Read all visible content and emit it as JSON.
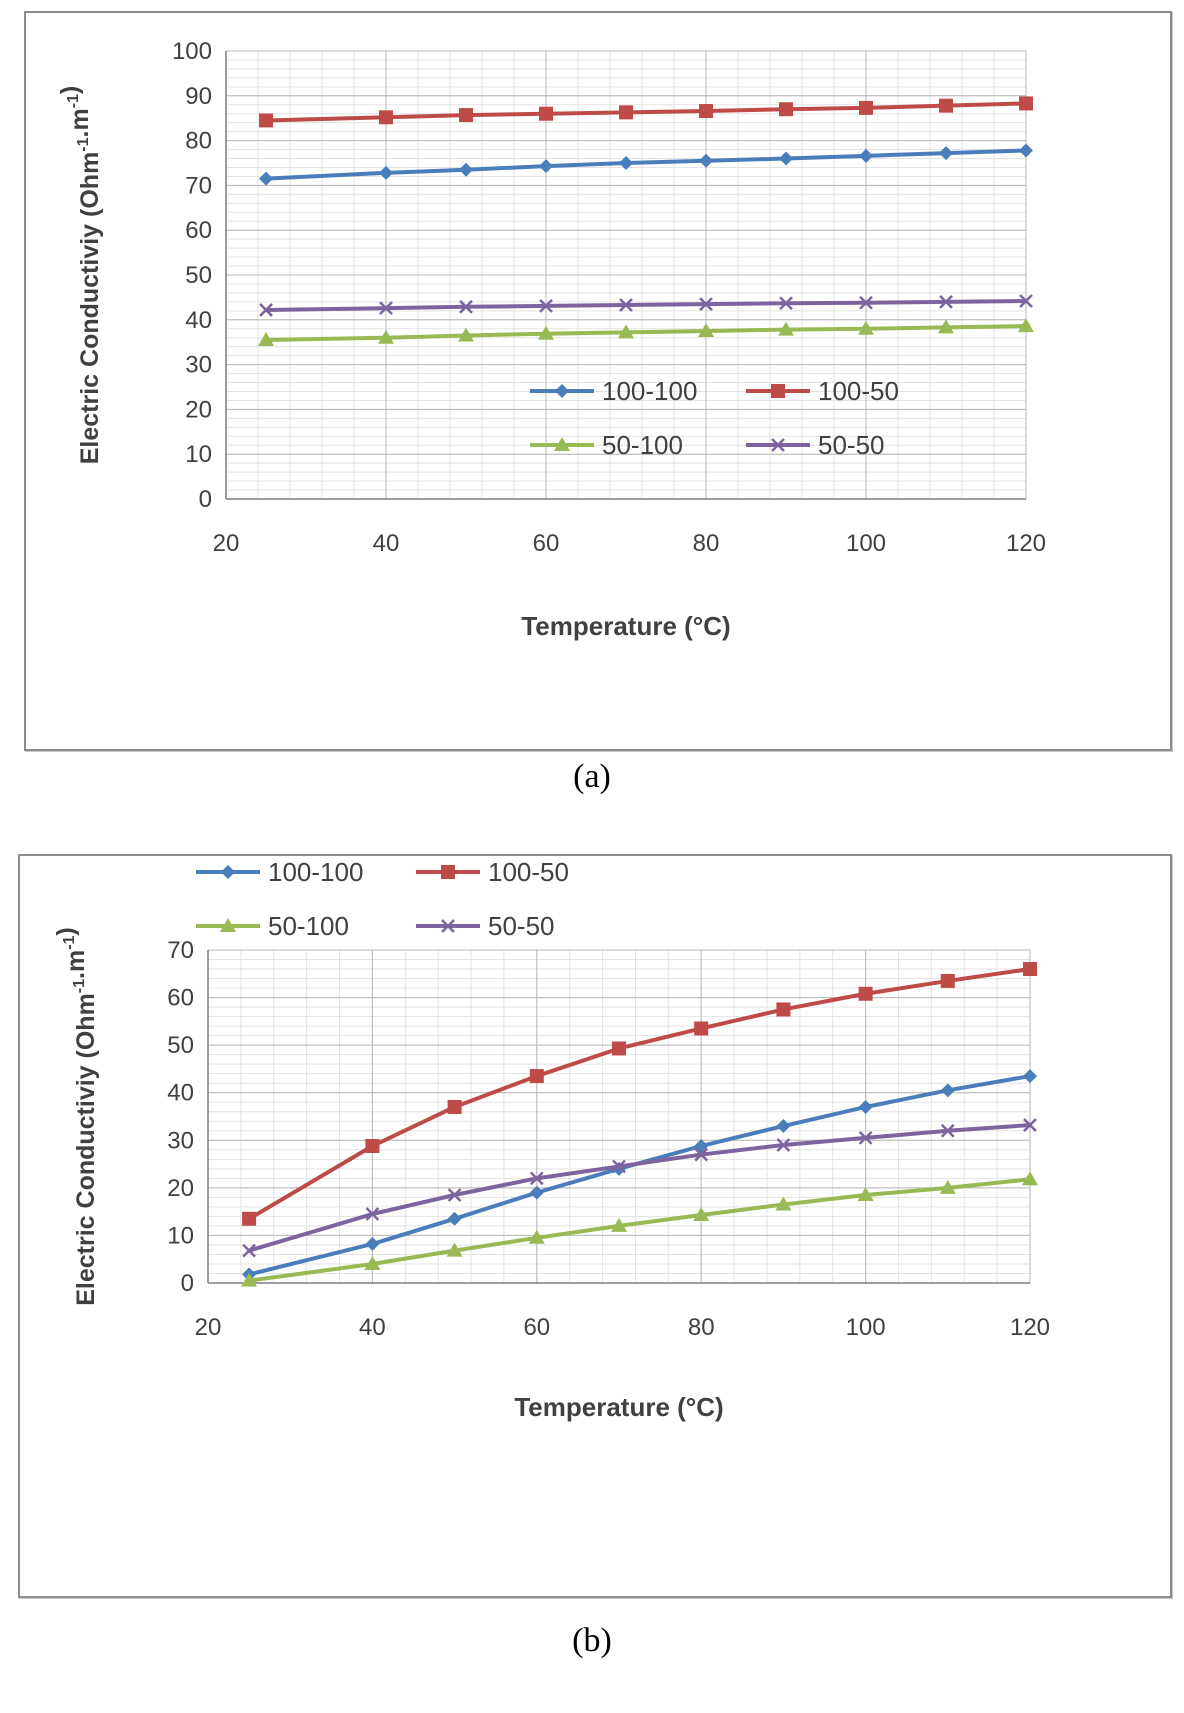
{
  "chart_data": [
    {
      "type": "line",
      "caption": "(a)",
      "xlabel": "Temperature (°C)",
      "ylabel": "Electric Conductiviy (Ohm-1.m-1)",
      "xlim": [
        20,
        120
      ],
      "ylim": [
        0,
        100
      ],
      "xticks": [
        20,
        40,
        60,
        80,
        100,
        120
      ],
      "yticks": [
        0,
        10,
        20,
        30,
        40,
        50,
        60,
        70,
        80,
        90,
        100
      ],
      "grid": true,
      "legend_position": "bottom-right",
      "x": [
        25,
        40,
        50,
        60,
        70,
        80,
        90,
        100,
        110,
        120
      ],
      "series": [
        {
          "name": "100-100",
          "color": "#4a7ebb",
          "marker": "diamond",
          "values": [
            71.5,
            72.8,
            73.5,
            74.3,
            75.0,
            75.5,
            76.0,
            76.6,
            77.2,
            77.8
          ]
        },
        {
          "name": "100-50",
          "color": "#be4b48",
          "marker": "square",
          "values": [
            84.5,
            85.2,
            85.7,
            86.0,
            86.3,
            86.6,
            87.0,
            87.3,
            87.8,
            88.3
          ]
        },
        {
          "name": "50-100",
          "color": "#98b954",
          "marker": "triangle",
          "values": [
            35.5,
            36.0,
            36.5,
            36.9,
            37.2,
            37.5,
            37.8,
            38.0,
            38.3,
            38.6
          ]
        },
        {
          "name": "50-50",
          "color": "#7e649e",
          "marker": "x",
          "values": [
            42.2,
            42.6,
            42.9,
            43.1,
            43.3,
            43.5,
            43.7,
            43.8,
            44.0,
            44.2
          ]
        }
      ]
    },
    {
      "type": "line",
      "caption": "(b)",
      "xlabel": "Temperature (°C)",
      "ylabel": "Electric Conductiviy (Ohm-1.m-1)",
      "xlim": [
        20,
        120
      ],
      "ylim": [
        0,
        70
      ],
      "xticks": [
        20,
        40,
        60,
        80,
        100,
        120
      ],
      "yticks": [
        0,
        10,
        20,
        30,
        40,
        50,
        60,
        70
      ],
      "grid": true,
      "legend_position": "top-left",
      "x": [
        25,
        40,
        50,
        60,
        70,
        80,
        90,
        100,
        110,
        120
      ],
      "series": [
        {
          "name": "100-100",
          "color": "#4a7ebb",
          "marker": "diamond",
          "values": [
            1.8,
            8.2,
            13.5,
            19.0,
            24.0,
            28.8,
            33.0,
            37.0,
            40.5,
            43.5
          ]
        },
        {
          "name": "100-50",
          "color": "#be4b48",
          "marker": "square",
          "values": [
            13.5,
            28.8,
            37.0,
            43.5,
            49.3,
            53.5,
            57.5,
            60.8,
            63.5,
            66.0
          ]
        },
        {
          "name": "50-100",
          "color": "#98b954",
          "marker": "triangle",
          "values": [
            0.5,
            4.0,
            6.8,
            9.5,
            12.0,
            14.3,
            16.5,
            18.5,
            20.0,
            21.8
          ]
        },
        {
          "name": "50-50",
          "color": "#7e649e",
          "marker": "x",
          "values": [
            6.8,
            14.5,
            18.5,
            22.0,
            24.5,
            27.0,
            29.0,
            30.5,
            32.0,
            33.2
          ]
        }
      ]
    }
  ]
}
